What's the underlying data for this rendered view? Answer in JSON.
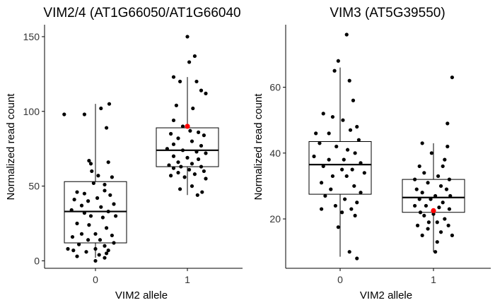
{
  "colors": {
    "point": "#000000",
    "highlight": "#ff0000",
    "axis": "#000000",
    "box_fill": "#ffffff"
  },
  "chart_data": [
    {
      "type": "box",
      "title": "VIM2/4 (AT1G66050/AT1G66040",
      "xlabel": "VIM2 allele",
      "ylabel": "Normalized read count",
      "categories": [
        "0",
        "1"
      ],
      "xtick_labels": [
        "0",
        "1"
      ],
      "yticks": [
        0,
        50,
        100,
        150
      ],
      "ytick_labels": [
        "0",
        "50",
        "100",
        "150"
      ],
      "ylim": [
        -5,
        158
      ],
      "grid": false,
      "boxes": [
        {
          "category": "0",
          "whisker_low": 2,
          "q1": 12,
          "median": 33,
          "q3": 53,
          "whisker_high": 105
        },
        {
          "category": "1",
          "whisker_low": 44,
          "q1": 63,
          "median": 74,
          "q3": 89,
          "whisker_high": 123
        }
      ],
      "highlight_points": [
        {
          "category": "1",
          "y": 90
        }
      ],
      "points": [
        [
          -0.34,
          98
        ],
        [
          -0.12,
          98
        ],
        [
          0.15,
          105
        ],
        [
          0.06,
          102
        ],
        [
          0.12,
          89
        ],
        [
          -0.07,
          67
        ],
        [
          -0.05,
          65
        ],
        [
          0.14,
          66
        ],
        [
          -0.04,
          60
        ],
        [
          0.03,
          57
        ],
        [
          0.18,
          56
        ],
        [
          -0.02,
          52
        ],
        [
          0.1,
          51
        ],
        [
          -0.2,
          46
        ],
        [
          -0.12,
          45
        ],
        [
          0.1,
          47
        ],
        [
          0.16,
          44
        ],
        [
          -0.23,
          41
        ],
        [
          -0.08,
          40
        ],
        [
          0.02,
          42
        ],
        [
          0.2,
          38
        ],
        [
          -0.15,
          37
        ],
        [
          0.06,
          36
        ],
        [
          -0.26,
          34
        ],
        [
          -0.12,
          32
        ],
        [
          0.14,
          33
        ],
        [
          0.22,
          30
        ],
        [
          -0.05,
          30
        ],
        [
          0.08,
          29
        ],
        [
          -0.2,
          25
        ],
        [
          -0.07,
          24
        ],
        [
          0.12,
          22
        ],
        [
          -0.15,
          18
        ],
        [
          0.0,
          18
        ],
        [
          0.18,
          17
        ],
        [
          -0.25,
          16
        ],
        [
          -0.08,
          14
        ],
        [
          0.05,
          14
        ],
        [
          0.2,
          12
        ],
        [
          -0.18,
          11
        ],
        [
          0.1,
          10
        ],
        [
          -0.3,
          8
        ],
        [
          0.0,
          8
        ],
        [
          0.14,
          7
        ],
        [
          -0.24,
          7
        ],
        [
          -0.1,
          6
        ],
        [
          0.12,
          5
        ],
        [
          0.04,
          4
        ],
        [
          -0.2,
          3
        ],
        [
          0.1,
          2
        ],
        [
          1.0,
          150
        ],
        [
          1.08,
          137
        ],
        [
          1.02,
          133
        ],
        [
          -0.0,
          0
        ],
        [
          0.85,
          123
        ],
        [
          0.92,
          120
        ],
        [
          1.1,
          120
        ],
        [
          1.15,
          114
        ],
        [
          1.2,
          112
        ],
        [
          0.88,
          104
        ],
        [
          1.06,
          102
        ],
        [
          0.85,
          94
        ],
        [
          0.95,
          90
        ],
        [
          1.03,
          87
        ],
        [
          1.12,
          86
        ],
        [
          0.82,
          85
        ],
        [
          1.18,
          84
        ],
        [
          0.9,
          82
        ],
        [
          1.05,
          80
        ],
        [
          0.85,
          78
        ],
        [
          1.15,
          77
        ],
        [
          0.78,
          75
        ],
        [
          0.95,
          74
        ],
        [
          1.1,
          73
        ],
        [
          1.2,
          72
        ],
        [
          0.85,
          70
        ],
        [
          1.0,
          69
        ],
        [
          1.12,
          68
        ],
        [
          0.9,
          66
        ],
        [
          1.05,
          65
        ],
        [
          0.8,
          64
        ],
        [
          0.93,
          63
        ],
        [
          1.15,
          63
        ],
        [
          0.85,
          62
        ],
        [
          1.02,
          61
        ],
        [
          1.18,
          60
        ],
        [
          0.9,
          59
        ],
        [
          1.08,
          58
        ],
        [
          0.82,
          57
        ],
        [
          0.97,
          56
        ],
        [
          1.2,
          55
        ],
        [
          1.05,
          50
        ],
        [
          1.16,
          46
        ],
        [
          0.92,
          48
        ],
        [
          1.11,
          44
        ]
      ]
    },
    {
      "type": "box",
      "title": "VIM3 (AT5G39550)",
      "xlabel": "VIM2 allele",
      "ylabel": "Normalized read count",
      "categories": [
        "0",
        "1"
      ],
      "xtick_labels": [
        "0",
        "1"
      ],
      "yticks": [
        20,
        40,
        60
      ],
      "ytick_labels": [
        "20",
        "40",
        "60"
      ],
      "ylim": [
        5,
        79
      ],
      "grid": false,
      "boxes": [
        {
          "category": "0",
          "whisker_low": 8.5,
          "q1": 27.5,
          "median": 36.5,
          "q3": 43.5,
          "whisker_high": 66
        },
        {
          "category": "1",
          "whisker_low": 10,
          "q1": 22,
          "median": 26.5,
          "q3": 32,
          "whisker_high": 43
        }
      ],
      "highlight_points": [
        {
          "category": "1",
          "y": 22.5
        }
      ],
      "points": [
        [
          0.07,
          76
        ],
        [
          -0.02,
          68
        ],
        [
          -0.06,
          65
        ],
        [
          0.1,
          62
        ],
        [
          0.14,
          56
        ],
        [
          -0.18,
          52
        ],
        [
          -0.08,
          51
        ],
        [
          0.03,
          50
        ],
        [
          0.18,
          48
        ],
        [
          -0.26,
          46
        ],
        [
          -0.12,
          46
        ],
        [
          0.11,
          47
        ],
        [
          0.2,
          44
        ],
        [
          -0.22,
          43
        ],
        [
          -0.04,
          42
        ],
        [
          0.08,
          41
        ],
        [
          0.16,
          40
        ],
        [
          -0.28,
          39
        ],
        [
          -0.12,
          38
        ],
        [
          0.04,
          38
        ],
        [
          0.22,
          37
        ],
        [
          -0.18,
          36
        ],
        [
          0.02,
          35
        ],
        [
          0.13,
          35
        ],
        [
          0.26,
          34
        ],
        [
          -0.08,
          33
        ],
        [
          0.07,
          33
        ],
        [
          -0.2,
          31
        ],
        [
          0.15,
          30
        ],
        [
          -0.1,
          29
        ],
        [
          0.22,
          28
        ],
        [
          -0.16,
          27
        ],
        [
          0.05,
          26
        ],
        [
          0.18,
          25
        ],
        [
          -0.05,
          24
        ],
        [
          0.12,
          23
        ],
        [
          -0.2,
          23
        ],
        [
          0.02,
          22
        ],
        [
          0.16,
          21
        ],
        [
          -0.02,
          17.5
        ],
        [
          0.1,
          10
        ],
        [
          0.18,
          8
        ],
        [
          1.2,
          63
        ],
        [
          1.15,
          49
        ],
        [
          0.88,
          43
        ],
        [
          1.15,
          42
        ],
        [
          0.98,
          40
        ],
        [
          1.12,
          38
        ],
        [
          0.85,
          36
        ],
        [
          1.1,
          36
        ],
        [
          0.9,
          34
        ],
        [
          1.05,
          33
        ],
        [
          0.8,
          32
        ],
        [
          1.17,
          32
        ],
        [
          0.94,
          31
        ],
        [
          1.08,
          30
        ],
        [
          0.82,
          29
        ],
        [
          1.14,
          29
        ],
        [
          0.88,
          28
        ],
        [
          1.02,
          27
        ],
        [
          1.18,
          27
        ],
        [
          0.85,
          26
        ],
        [
          0.97,
          26
        ],
        [
          1.1,
          25
        ],
        [
          0.8,
          24
        ],
        [
          0.92,
          24
        ],
        [
          1.06,
          23.5
        ],
        [
          1.17,
          23
        ],
        [
          0.86,
          22
        ],
        [
          1.0,
          21.5
        ],
        [
          0.9,
          21
        ],
        [
          1.12,
          20
        ],
        [
          0.95,
          19
        ],
        [
          1.04,
          19
        ],
        [
          0.83,
          18
        ],
        [
          1.16,
          18
        ],
        [
          0.94,
          17
        ],
        [
          1.08,
          16
        ],
        [
          1.2,
          15
        ],
        [
          0.88,
          15
        ],
        [
          1.04,
          13
        ],
        [
          1.02,
          10
        ]
      ]
    }
  ]
}
